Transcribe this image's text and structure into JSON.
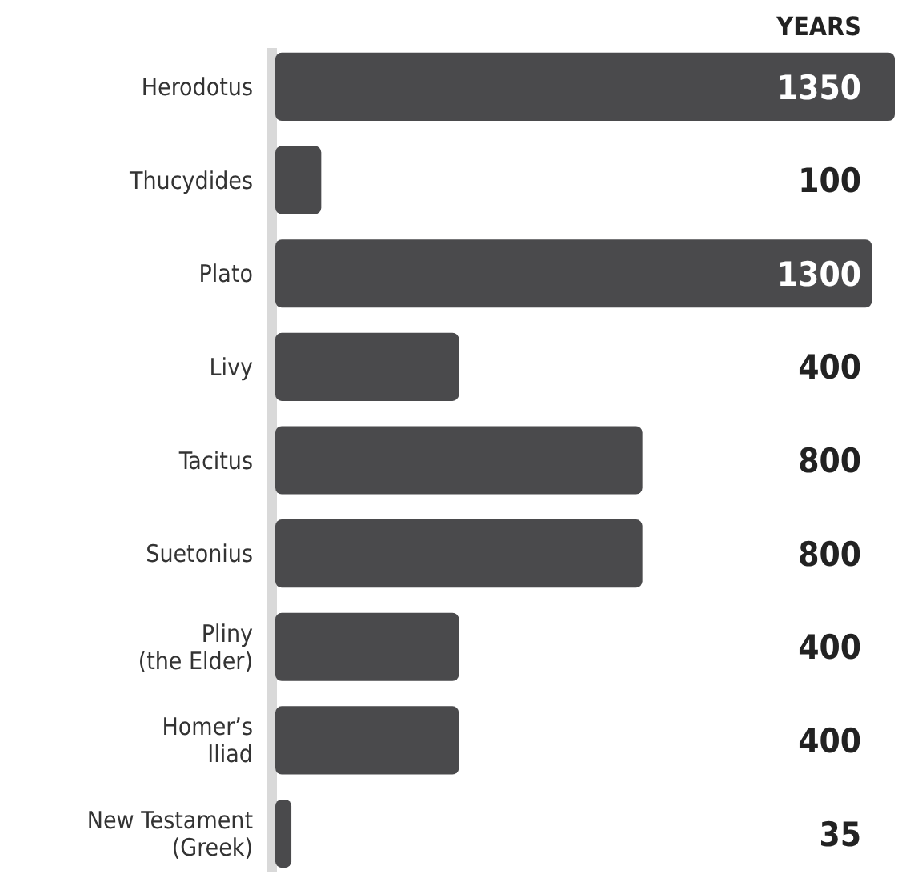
{
  "chart_data": {
    "type": "bar",
    "orientation": "horizontal",
    "xlabel": "YEARS",
    "categories": [
      "Herodotus",
      "Thucydides",
      "Plato",
      "Livy",
      "Tacitus",
      "Suetonius",
      "Pliny\n(the Elder)",
      "Homer’s\nIliad",
      "New Testament\n(Greek)"
    ],
    "values": [
      1350,
      100,
      1300,
      400,
      800,
      800,
      400,
      400,
      35
    ],
    "color": "#4a4a4c",
    "data_labels": true
  }
}
